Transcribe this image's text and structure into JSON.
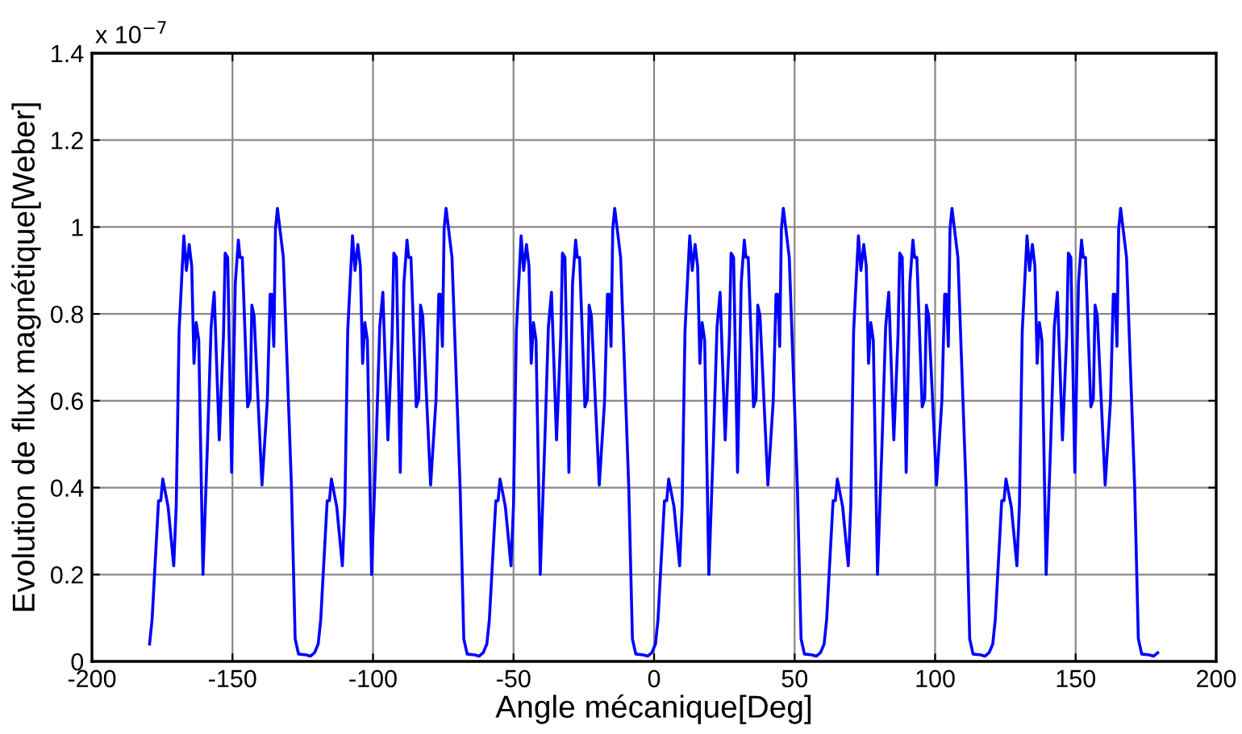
{
  "chart_data": {
    "type": "line",
    "xlabel": "Angle mécanique[Deg]",
    "ylabel": "Evolution de flux magnétique[Weber]",
    "annotations": [
      "x 10$^{−7}$"
    ],
    "xlim": [
      -200,
      200
    ],
    "xticks": [
      -200,
      -150,
      -100,
      -50,
      0,
      50,
      100,
      150,
      200
    ],
    "ylim": [
      0,
      1.4
    ],
    "yticks": [
      0,
      0.2,
      0.4,
      0.6,
      0.8,
      {
        "value": 1,
        "label": "1"
      },
      1.2,
      1.4
    ],
    "grid": true,
    "legend": false,
    "marker": "none",
    "line_style": "solid",
    "series": [
      {
        "color": "#0000ff",
        "x": [
          -179.5,
          -178.6,
          -176.3,
          -175.5,
          -174.8,
          -172.9,
          -170.9,
          -170.0,
          -169.0,
          -167.3,
          -166.4,
          -165.4,
          -164.5,
          -163.7,
          -162.9,
          -162.0,
          -160.5,
          -158.9,
          -157.6,
          -156.5,
          -154.7,
          -153.2,
          -152.6,
          -151.7,
          -150.3,
          -149.0,
          -147.9,
          -147.3,
          -146.5,
          -144.6,
          -143.7,
          -143.1,
          -142.3,
          -139.5,
          -137.6,
          -136.6,
          -136.0,
          -135.3,
          -134.7,
          -134.0,
          -131.9,
          -129.0,
          -127.7,
          -126.5,
          -123.7,
          -122.3,
          -120.8,
          -119.5,
          -118.6,
          -116.3,
          -115.5,
          -114.8,
          -112.9,
          -110.9,
          -110.0,
          -109.0,
          -107.3,
          -106.4,
          -105.4,
          -104.5,
          -103.7,
          -102.9,
          -102.0,
          -100.5,
          -98.9,
          -97.6,
          -96.5,
          -94.7,
          -93.2,
          -92.6,
          -91.7,
          -90.3,
          -89.0,
          -87.9,
          -87.3,
          -86.5,
          -84.6,
          -83.7,
          -83.1,
          -82.3,
          -79.5,
          -77.6,
          -76.6,
          -76.0,
          -75.3,
          -74.7,
          -74.0,
          -71.9,
          -69.0,
          -67.7,
          -66.5,
          -63.7,
          -62.3,
          -60.8,
          -59.5,
          -58.6,
          -56.3,
          -55.5,
          -54.8,
          -52.9,
          -50.9,
          -50.0,
          -49.0,
          -47.3,
          -46.4,
          -45.4,
          -44.5,
          -43.7,
          -42.9,
          -42.0,
          -40.5,
          -38.9,
          -37.6,
          -36.5,
          -34.7,
          -33.2,
          -32.6,
          -31.7,
          -30.3,
          -29.0,
          -27.9,
          -27.3,
          -26.5,
          -24.6,
          -23.7,
          -23.1,
          -22.3,
          -19.5,
          -17.6,
          -16.6,
          -16.0,
          -15.3,
          -14.7,
          -14.0,
          -11.9,
          -9.0,
          -7.7,
          -6.5,
          -3.7,
          -2.3,
          -0.8,
          0.5,
          1.4,
          3.7,
          4.5,
          5.2,
          7.1,
          9.1,
          10.0,
          11.0,
          12.7,
          13.6,
          14.6,
          15.5,
          16.3,
          17.1,
          18.0,
          19.5,
          21.1,
          22.4,
          23.5,
          25.3,
          26.8,
          27.4,
          28.3,
          29.7,
          31.0,
          32.1,
          32.7,
          33.5,
          35.4,
          36.3,
          36.9,
          37.7,
          40.5,
          42.4,
          43.4,
          44.0,
          44.7,
          45.3,
          46.0,
          48.1,
          51.0,
          52.3,
          53.5,
          56.3,
          57.7,
          59.2,
          60.5,
          61.4,
          63.7,
          64.5,
          65.2,
          67.1,
          69.1,
          70.0,
          71.0,
          72.7,
          73.6,
          74.6,
          75.5,
          76.3,
          77.1,
          78.0,
          79.5,
          81.1,
          82.4,
          83.5,
          85.3,
          86.8,
          87.4,
          88.3,
          89.7,
          91.0,
          92.1,
          92.7,
          93.5,
          95.4,
          96.3,
          96.9,
          97.7,
          100.5,
          102.4,
          103.4,
          104.0,
          104.7,
          105.3,
          106.0,
          108.1,
          111.0,
          112.3,
          113.5,
          116.3,
          117.7,
          119.2,
          120.5,
          121.4,
          123.7,
          124.5,
          125.2,
          127.1,
          129.1,
          130.0,
          131.0,
          132.7,
          133.6,
          134.6,
          135.5,
          136.3,
          137.1,
          138.0,
          139.5,
          141.1,
          142.4,
          143.5,
          145.3,
          146.8,
          147.4,
          148.3,
          149.7,
          151.0,
          152.1,
          152.7,
          153.5,
          155.4,
          156.3,
          156.9,
          157.7,
          160.5,
          162.4,
          163.4,
          164.0,
          164.7,
          165.3,
          166.0,
          168.1,
          171.0,
          172.3,
          173.5,
          176.3,
          177.7,
          179.2
        ],
        "values": [
          0.04,
          0.096,
          0.37,
          0.37,
          0.42,
          0.356,
          0.22,
          0.36,
          0.76,
          0.98,
          0.9,
          0.96,
          0.91,
          0.686,
          0.78,
          0.74,
          0.2,
          0.5,
          0.77,
          0.85,
          0.51,
          0.75,
          0.94,
          0.93,
          0.435,
          0.87,
          0.97,
          0.93,
          0.93,
          0.586,
          0.605,
          0.82,
          0.795,
          0.406,
          0.6,
          0.845,
          0.845,
          0.725,
          0.996,
          1.043,
          0.93,
          0.4,
          0.052,
          0.017,
          0.015,
          0.012,
          0.02,
          0.04,
          0.096,
          0.37,
          0.37,
          0.42,
          0.356,
          0.22,
          0.36,
          0.76,
          0.98,
          0.9,
          0.96,
          0.91,
          0.686,
          0.78,
          0.74,
          0.2,
          0.5,
          0.77,
          0.85,
          0.51,
          0.75,
          0.94,
          0.93,
          0.435,
          0.87,
          0.97,
          0.93,
          0.93,
          0.586,
          0.605,
          0.82,
          0.795,
          0.406,
          0.6,
          0.845,
          0.845,
          0.725,
          0.996,
          1.043,
          0.93,
          0.4,
          0.052,
          0.017,
          0.015,
          0.012,
          0.02,
          0.04,
          0.096,
          0.37,
          0.37,
          0.42,
          0.356,
          0.22,
          0.36,
          0.76,
          0.98,
          0.9,
          0.96,
          0.91,
          0.686,
          0.78,
          0.74,
          0.2,
          0.5,
          0.77,
          0.85,
          0.51,
          0.75,
          0.94,
          0.93,
          0.435,
          0.87,
          0.97,
          0.93,
          0.93,
          0.586,
          0.605,
          0.82,
          0.795,
          0.406,
          0.6,
          0.845,
          0.845,
          0.725,
          0.996,
          1.043,
          0.93,
          0.4,
          0.052,
          0.017,
          0.015,
          0.012,
          0.02,
          0.04,
          0.096,
          0.37,
          0.37,
          0.42,
          0.356,
          0.22,
          0.36,
          0.76,
          0.98,
          0.9,
          0.96,
          0.91,
          0.686,
          0.78,
          0.74,
          0.2,
          0.5,
          0.77,
          0.85,
          0.51,
          0.75,
          0.94,
          0.93,
          0.435,
          0.87,
          0.97,
          0.93,
          0.93,
          0.586,
          0.605,
          0.82,
          0.795,
          0.406,
          0.6,
          0.845,
          0.845,
          0.725,
          0.996,
          1.043,
          0.93,
          0.4,
          0.052,
          0.017,
          0.015,
          0.012,
          0.02,
          0.04,
          0.096,
          0.37,
          0.37,
          0.42,
          0.356,
          0.22,
          0.36,
          0.76,
          0.98,
          0.9,
          0.96,
          0.91,
          0.686,
          0.78,
          0.74,
          0.2,
          0.5,
          0.77,
          0.85,
          0.51,
          0.75,
          0.94,
          0.93,
          0.435,
          0.87,
          0.97,
          0.93,
          0.93,
          0.586,
          0.605,
          0.82,
          0.795,
          0.406,
          0.6,
          0.845,
          0.845,
          0.725,
          0.996,
          1.043,
          0.93,
          0.4,
          0.052,
          0.017,
          0.015,
          0.012,
          0.02,
          0.04,
          0.096,
          0.37,
          0.37,
          0.42,
          0.356,
          0.22,
          0.36,
          0.76,
          0.98,
          0.9,
          0.96,
          0.91,
          0.686,
          0.78,
          0.74,
          0.2,
          0.5,
          0.77,
          0.85,
          0.51,
          0.75,
          0.94,
          0.93,
          0.435,
          0.87,
          0.97,
          0.93,
          0.93,
          0.586,
          0.605,
          0.82,
          0.795,
          0.406,
          0.6,
          0.845,
          0.845,
          0.725,
          0.996,
          1.043,
          0.93,
          0.4,
          0.052,
          0.017,
          0.015,
          0.012,
          0.02
        ]
      }
    ]
  }
}
